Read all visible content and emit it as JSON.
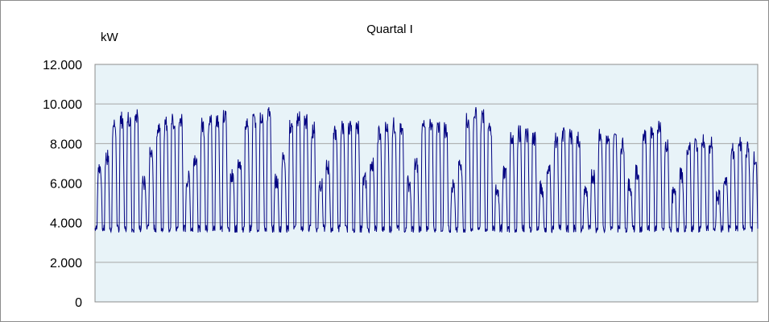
{
  "chart_data": {
    "type": "line",
    "title": "Quartal I",
    "ylabel": "kW",
    "xlabel": "",
    "ylim": [
      0,
      12000
    ],
    "yticks": [
      0,
      2000,
      4000,
      6000,
      8000,
      10000,
      12000
    ],
    "ytick_labels": [
      "0",
      "2.000",
      "4.000",
      "6.000",
      "8.000",
      "10.000",
      "12.000"
    ],
    "x_tick_labels": [],
    "grid": "horizontal",
    "plot_background": "#e8f3f8",
    "series_color": "#000080",
    "series": [
      {
        "day_peaks": [
          6800,
          7300,
          8900,
          9200,
          9300,
          9500,
          6000,
          7400,
          8800,
          9000,
          9100,
          9200,
          6200,
          7300,
          8900,
          9100,
          9200,
          9300,
          6300,
          7100,
          9000,
          9200,
          9400,
          9500,
          6100,
          7200,
          8900,
          9300,
          9100,
          8700,
          6000,
          6800,
          8600,
          8800,
          8900,
          8700,
          6100,
          7000,
          8500,
          8700,
          8900,
          8600,
          6000,
          6900,
          8800,
          9000,
          8900,
          8700,
          5800,
          7000,
          9200,
          9400,
          9300,
          8800,
          5600,
          6600,
          8300,
          8500,
          8400,
          8300,
          5700,
          6600,
          8200,
          8400,
          8300,
          8200,
          5600,
          6400,
          8300,
          8400,
          8200,
          7900,
          5800,
          6500,
          8400,
          8600,
          8900,
          7800,
          5400,
          6400,
          7800,
          8000,
          8100,
          7900,
          5300,
          6200,
          7600,
          7900,
          7700,
          7200
        ],
        "night_base": 3700
      }
    ]
  }
}
